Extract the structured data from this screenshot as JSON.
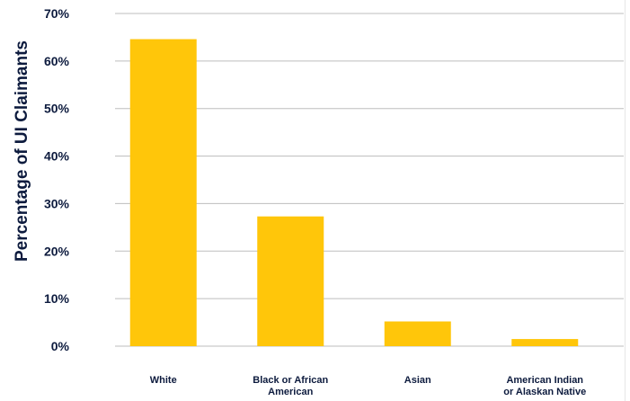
{
  "chart_data": {
    "type": "bar",
    "title": "",
    "xlabel": "",
    "ylabel": "Percentage of UI Claimants",
    "categories": [
      [
        "White"
      ],
      [
        "Black or African",
        "American"
      ],
      [
        "Asian"
      ],
      [
        "American Indian",
        "or Alaskan Native"
      ]
    ],
    "values": [
      64.6,
      27.3,
      5.2,
      1.5
    ],
    "ylim": [
      0,
      70
    ],
    "yticks": [
      0,
      10,
      20,
      30,
      40,
      50,
      60,
      70
    ],
    "ytick_labels": [
      "0%",
      "10%",
      "20%",
      "30%",
      "40%",
      "50%",
      "60%",
      "70%"
    ],
    "grid": true,
    "legend": "none",
    "colors": {
      "bar": "#FFC60A",
      "grid": "#bdbdbd",
      "text": "#0d1b3e"
    }
  }
}
